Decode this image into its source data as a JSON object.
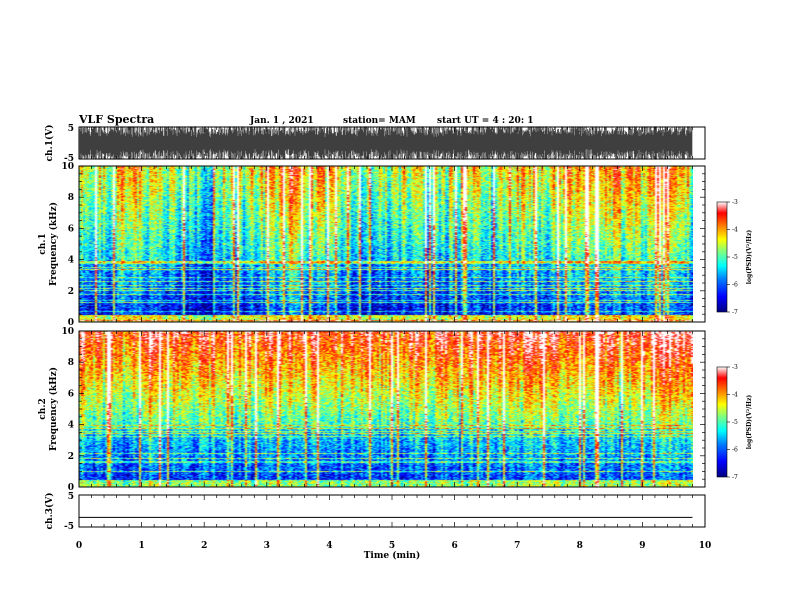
{
  "chart_data": {
    "type": "heatmap",
    "title": "VLF Spectra",
    "header": {
      "date": "Jan. 1 , 2021",
      "station": "station= MAM",
      "start": "start  UT =   4 : 20: 1"
    },
    "xlabel": "Time  (min)",
    "xlim": [
      0,
      10
    ],
    "x_ticks": [
      "0",
      "1",
      "2",
      "3",
      "4",
      "5",
      "6",
      "7",
      "8",
      "9",
      "10"
    ],
    "data_end_min": 9.8,
    "panels": [
      {
        "id": "ch1-waveform",
        "type": "line",
        "ylabel": "ch.1(V)",
        "ylim": [
          -5,
          5
        ],
        "y_ticks": [
          "5",
          "-5"
        ]
      },
      {
        "id": "ch1-spectrogram",
        "type": "heatmap",
        "ylabel": "ch.1",
        "ylabel2": "Frequency  (kHz)",
        "ylim": [
          0,
          10
        ],
        "y_ticks": [
          "0",
          "2",
          "4",
          "6",
          "8",
          "10"
        ],
        "colorbar": {
          "label": "log(PSD)(V²/Hz)",
          "range": [
            -7,
            -3
          ],
          "ticks": [
            "-3",
            "-4",
            "-5",
            "-6",
            "-7"
          ]
        }
      },
      {
        "id": "ch2-spectrogram",
        "type": "heatmap",
        "ylabel": "ch.2",
        "ylabel2": "Frequency  (kHz)",
        "ylim": [
          0,
          10
        ],
        "y_ticks": [
          "0",
          "2",
          "4",
          "6",
          "8",
          "10"
        ],
        "colorbar": {
          "label": "log(PSD)(V²/Hz)",
          "range": [
            -7,
            -3
          ],
          "ticks": [
            "-3",
            "-4",
            "-5",
            "-6",
            "-7"
          ]
        }
      },
      {
        "id": "ch3-waveform",
        "type": "line",
        "ylabel": "ch.3(V)",
        "ylim": [
          -5,
          5
        ],
        "y_ticks": [
          "5",
          "-5"
        ],
        "flat_value": -2
      }
    ],
    "colormap": [
      "#00007f",
      "#0000ff",
      "#007fff",
      "#00ffff",
      "#7fff7f",
      "#ffff00",
      "#ff7f00",
      "#ff0000",
      "#ffffff"
    ]
  }
}
